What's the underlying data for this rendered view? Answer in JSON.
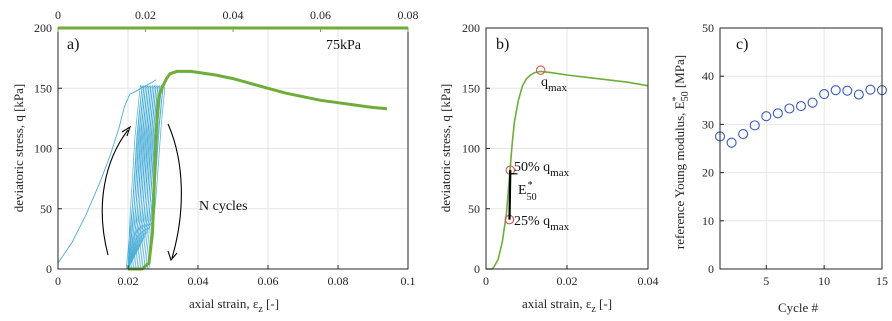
{
  "chart_data": [
    {
      "type": "line",
      "panel_label": "a)",
      "annotations": [
        "75kPa",
        "N cycles"
      ],
      "xlabel": "axial strain, ε",
      "xlabel_sub": "z",
      "xlabel_unit": " [-]",
      "ylabel": "deviatoric stress, q [kPa]",
      "xlim": [
        0,
        0.1
      ],
      "ylim": [
        0,
        200
      ],
      "xticks": [
        "0",
        "0.02",
        "0.04",
        "0.06",
        "0.08",
        "0.1"
      ],
      "yticks": [
        "0",
        "50",
        "100",
        "150",
        "200"
      ],
      "top_xlim": [
        0,
        0.08
      ],
      "top_xticks": [
        "0",
        "0.02",
        "0.04",
        "0.06",
        "0.08"
      ],
      "grid": true,
      "colors": {
        "cycles": "#4aaed8",
        "final": "#6fad3a",
        "arrows": "#000000"
      },
      "series": [
        {
          "role": "cycles",
          "points": [
            [
              0,
              5
            ],
            [
              0.004,
              22
            ],
            [
              0.008,
              45
            ],
            [
              0.012,
              72
            ],
            [
              0.015,
              95
            ],
            [
              0.0175,
              118
            ],
            [
              0.019,
              135
            ],
            [
              0.0205,
              145
            ],
            [
              0.0225,
              148
            ],
            [
              0.025,
              152
            ],
            [
              0.027,
              155
            ],
            [
              0.028,
              157
            ]
          ],
          "loops": [
            0.02,
            0.0205,
            0.021,
            0.0215,
            0.022,
            0.0225,
            0.023,
            0.0235,
            0.024,
            0.0245,
            0.025,
            0.0255,
            0.026,
            0.0265
          ]
        },
        {
          "role": "final",
          "points": [
            [
              0.02,
              0
            ],
            [
              0.024,
              0
            ],
            [
              0.026,
              5
            ],
            [
              0.027,
              30
            ],
            [
              0.0275,
              70
            ],
            [
              0.028,
              110
            ],
            [
              0.0285,
              135
            ],
            [
              0.029,
              145
            ],
            [
              0.03,
              152
            ],
            [
              0.031,
              158
            ],
            [
              0.032,
              162
            ],
            [
              0.034,
              164
            ],
            [
              0.038,
              164
            ],
            [
              0.045,
              161
            ],
            [
              0.05,
              158
            ],
            [
              0.055,
              154
            ],
            [
              0.06,
              150
            ],
            [
              0.065,
              146
            ],
            [
              0.07,
              143
            ],
            [
              0.075,
              140
            ],
            [
              0.08,
              138
            ],
            [
              0.085,
              136
            ],
            [
              0.09,
              134
            ],
            [
              0.094,
              133
            ]
          ]
        }
      ]
    },
    {
      "type": "line",
      "panel_label": "b)",
      "annotations": {
        "qmax": "q",
        "qmax_sub": "max",
        "q50": "50% q",
        "q50_sub": "max",
        "q25": "25% q",
        "q25_sub": "max",
        "e50": "E",
        "e50_sup": "*",
        "e50_sub": "50"
      },
      "xlabel": "axial strain, ε",
      "xlabel_sub": "z",
      "xlabel_unit": " [-]",
      "ylabel": "deviatoric stress, q [kPa]",
      "xlim": [
        0,
        0.04
      ],
      "ylim": [
        0,
        200
      ],
      "xticks": [
        "0",
        "0.02",
        "0.04"
      ],
      "yticks": [
        "0",
        "50",
        "100",
        "150",
        "200"
      ],
      "grid": true,
      "colors": {
        "line": "#6fad3a",
        "markers": "#e05050"
      },
      "series": [
        {
          "points": [
            [
              0,
              0
            ],
            [
              0.0015,
              0
            ],
            [
              0.002,
              2
            ],
            [
              0.003,
              8
            ],
            [
              0.004,
              22
            ],
            [
              0.005,
              45
            ],
            [
              0.0055,
              65
            ],
            [
              0.006,
              85
            ],
            [
              0.0065,
              105
            ],
            [
              0.007,
              122
            ],
            [
              0.008,
              140
            ],
            [
              0.009,
              152
            ],
            [
              0.01,
              158
            ],
            [
              0.011,
              161
            ],
            [
              0.012,
              163
            ],
            [
              0.0135,
              164
            ],
            [
              0.016,
              163
            ],
            [
              0.02,
              161
            ],
            [
              0.025,
              159
            ],
            [
              0.03,
              157
            ],
            [
              0.035,
              155
            ],
            [
              0.04,
              152
            ]
          ]
        }
      ],
      "markers": [
        [
          0.0058,
          41
        ],
        [
          0.006,
          82
        ],
        [
          0.0135,
          165
        ]
      ]
    },
    {
      "type": "scatter",
      "panel_label": "c)",
      "xlabel": "Cycle #",
      "ylabel": "reference Young modulus, E",
      "ylabel_sup": "*",
      "ylabel_sub": "50",
      "ylabel_unit": " [MPa]",
      "xlim": [
        1,
        15
      ],
      "ylim": [
        0,
        50
      ],
      "xticks": [
        "5",
        "10",
        "15"
      ],
      "yticks": [
        "0",
        "10",
        "20",
        "30",
        "40",
        "50"
      ],
      "grid": true,
      "colors": {
        "markers": "#3a5cc0"
      },
      "x": [
        1,
        2,
        3,
        4,
        5,
        6,
        7,
        8,
        9,
        10,
        11,
        12,
        13,
        14,
        15
      ],
      "y": [
        27.5,
        26.2,
        28.0,
        29.8,
        31.7,
        32.3,
        33.3,
        33.8,
        34.5,
        36.3,
        37.1,
        37.0,
        36.2,
        37.2,
        37.1
      ]
    }
  ]
}
